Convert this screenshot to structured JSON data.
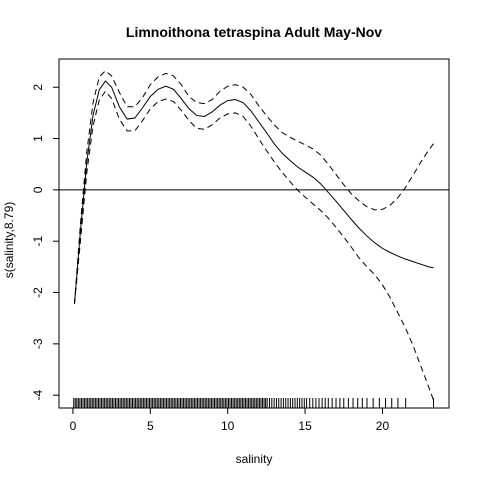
{
  "chart_data": {
    "type": "line",
    "title": "Limnoithona tetraspina Adult  May-Nov",
    "xlabel": "salinity",
    "ylabel": "s(salinity,8.79)",
    "xlim": [
      -0.9,
      24.3
    ],
    "ylim": [
      -4.25,
      2.55
    ],
    "x_ticks": [
      0,
      5,
      10,
      15,
      20
    ],
    "x_tick_labels": [
      "0",
      "5",
      "10",
      "15",
      "20"
    ],
    "y_ticks": [
      -4,
      -3,
      -2,
      -1,
      0,
      1,
      2
    ],
    "y_tick_labels": [
      "-4",
      "-3",
      "-2",
      "-1",
      "0",
      "1",
      "2"
    ],
    "hline": 0,
    "grid": false,
    "series": [
      {
        "role": "fit",
        "style": "solid",
        "x": [
          0.1,
          0.5,
          0.9,
          1.3,
          1.7,
          2.1,
          2.5,
          3.0,
          3.5,
          4.0,
          4.5,
          5.0,
          5.5,
          6.0,
          6.5,
          7.0,
          7.5,
          8.0,
          8.5,
          9.0,
          9.5,
          10.0,
          10.5,
          11.0,
          11.5,
          12.0,
          12.5,
          13.0,
          13.5,
          14.0,
          14.5,
          15.0,
          15.5,
          16.0,
          16.5,
          17.0,
          17.5,
          18.0,
          18.5,
          19.0,
          19.5,
          20.0,
          20.5,
          21.0,
          21.5,
          22.0,
          22.5,
          23.0,
          23.3
        ],
        "values": [
          -2.22,
          -0.75,
          0.55,
          1.45,
          1.95,
          2.12,
          2.0,
          1.62,
          1.38,
          1.4,
          1.6,
          1.82,
          1.96,
          2.02,
          1.96,
          1.78,
          1.58,
          1.45,
          1.43,
          1.52,
          1.65,
          1.74,
          1.76,
          1.7,
          1.54,
          1.33,
          1.12,
          0.9,
          0.72,
          0.58,
          0.45,
          0.35,
          0.25,
          0.12,
          -0.05,
          -0.22,
          -0.4,
          -0.58,
          -0.75,
          -0.9,
          -1.03,
          -1.14,
          -1.22,
          -1.29,
          -1.35,
          -1.4,
          -1.45,
          -1.5,
          -1.52
        ]
      },
      {
        "role": "upper-band",
        "style": "dashed",
        "x": [
          0.1,
          0.5,
          0.9,
          1.3,
          1.7,
          2.1,
          2.5,
          3.0,
          3.5,
          4.0,
          4.5,
          5.0,
          5.5,
          6.0,
          6.5,
          7.0,
          7.5,
          8.0,
          8.5,
          9.0,
          9.5,
          10.0,
          10.5,
          11.0,
          11.5,
          12.0,
          12.5,
          13.0,
          13.5,
          14.0,
          14.5,
          15.0,
          15.5,
          16.0,
          16.5,
          17.0,
          17.5,
          18.0,
          18.5,
          19.0,
          19.5,
          20.0,
          20.5,
          21.0,
          21.5,
          22.0,
          22.5,
          23.0,
          23.3
        ],
        "values": [
          -2.22,
          -0.6,
          0.75,
          1.7,
          2.2,
          2.32,
          2.22,
          1.9,
          1.62,
          1.62,
          1.8,
          2.05,
          2.2,
          2.27,
          2.22,
          2.05,
          1.82,
          1.7,
          1.68,
          1.76,
          1.92,
          2.02,
          2.05,
          2.0,
          1.86,
          1.64,
          1.45,
          1.27,
          1.12,
          1.03,
          0.95,
          0.88,
          0.8,
          0.68,
          0.5,
          0.3,
          0.1,
          -0.08,
          -0.22,
          -0.33,
          -0.39,
          -0.38,
          -0.3,
          -0.15,
          0.05,
          0.3,
          0.55,
          0.78,
          0.9
        ]
      },
      {
        "role": "lower-band",
        "style": "dashed",
        "x": [
          0.1,
          0.5,
          0.9,
          1.3,
          1.7,
          2.1,
          2.5,
          3.0,
          3.5,
          4.0,
          4.5,
          5.0,
          5.5,
          6.0,
          6.5,
          7.0,
          7.5,
          8.0,
          8.5,
          9.0,
          9.5,
          10.0,
          10.5,
          11.0,
          11.5,
          12.0,
          12.5,
          13.0,
          13.5,
          14.0,
          14.5,
          15.0,
          15.5,
          16.0,
          16.5,
          17.0,
          17.5,
          18.0,
          18.5,
          19.0,
          19.5,
          20.0,
          20.5,
          21.0,
          21.5,
          22.0,
          22.5,
          23.0,
          23.3
        ],
        "values": [
          -2.22,
          -0.95,
          0.35,
          1.25,
          1.75,
          1.92,
          1.78,
          1.38,
          1.15,
          1.15,
          1.35,
          1.58,
          1.72,
          1.77,
          1.72,
          1.55,
          1.35,
          1.2,
          1.18,
          1.27,
          1.4,
          1.48,
          1.5,
          1.43,
          1.24,
          1.0,
          0.77,
          0.55,
          0.35,
          0.17,
          0.0,
          -0.14,
          -0.27,
          -0.4,
          -0.55,
          -0.73,
          -0.92,
          -1.12,
          -1.33,
          -1.5,
          -1.65,
          -1.85,
          -2.1,
          -2.4,
          -2.7,
          -3.05,
          -3.45,
          -3.85,
          -4.1
        ]
      }
    ],
    "rug": [
      0.05,
      0.15,
      0.25,
      0.35,
      0.45,
      0.55,
      0.65,
      0.75,
      0.85,
      0.95,
      1.05,
      1.15,
      1.25,
      1.35,
      1.45,
      1.55,
      1.65,
      1.75,
      1.85,
      1.95,
      2.05,
      2.15,
      2.25,
      2.35,
      2.45,
      2.55,
      2.65,
      2.75,
      2.85,
      2.95,
      3.05,
      3.15,
      3.25,
      3.35,
      3.45,
      3.55,
      3.65,
      3.75,
      3.85,
      3.95,
      4.05,
      4.15,
      4.25,
      4.35,
      4.45,
      4.55,
      4.65,
      4.75,
      4.85,
      4.95,
      5.05,
      5.15,
      5.25,
      5.35,
      5.45,
      5.55,
      5.65,
      5.75,
      5.85,
      5.95,
      6.05,
      6.15,
      6.25,
      6.35,
      6.45,
      6.55,
      6.65,
      6.75,
      6.85,
      6.95,
      7.05,
      7.15,
      7.25,
      7.35,
      7.45,
      7.55,
      7.65,
      7.75,
      7.85,
      7.95,
      8.05,
      8.15,
      8.25,
      8.35,
      8.45,
      8.55,
      8.65,
      8.75,
      8.85,
      8.95,
      9.05,
      9.15,
      9.25,
      9.35,
      9.45,
      9.55,
      9.65,
      9.75,
      9.85,
      9.95,
      10.05,
      10.15,
      10.25,
      10.35,
      10.45,
      10.55,
      10.65,
      10.75,
      10.85,
      10.95,
      11.05,
      11.15,
      11.25,
      11.35,
      11.45,
      11.55,
      11.65,
      11.75,
      11.85,
      11.95,
      12.05,
      12.15,
      12.25,
      12.35,
      12.45,
      12.55,
      12.7,
      12.85,
      13.0,
      13.15,
      13.3,
      13.45,
      13.6,
      13.75,
      13.9,
      14.05,
      14.2,
      14.35,
      14.5,
      14.65,
      14.8,
      14.95,
      15.1,
      15.3,
      15.5,
      15.7,
      15.9,
      16.1,
      16.3,
      16.5,
      16.75,
      17.0,
      17.25,
      17.5,
      17.8,
      18.1,
      18.4,
      18.7,
      19.0,
      19.4,
      19.8,
      20.2,
      20.6,
      21.0,
      21.5,
      23.3
    ]
  }
}
